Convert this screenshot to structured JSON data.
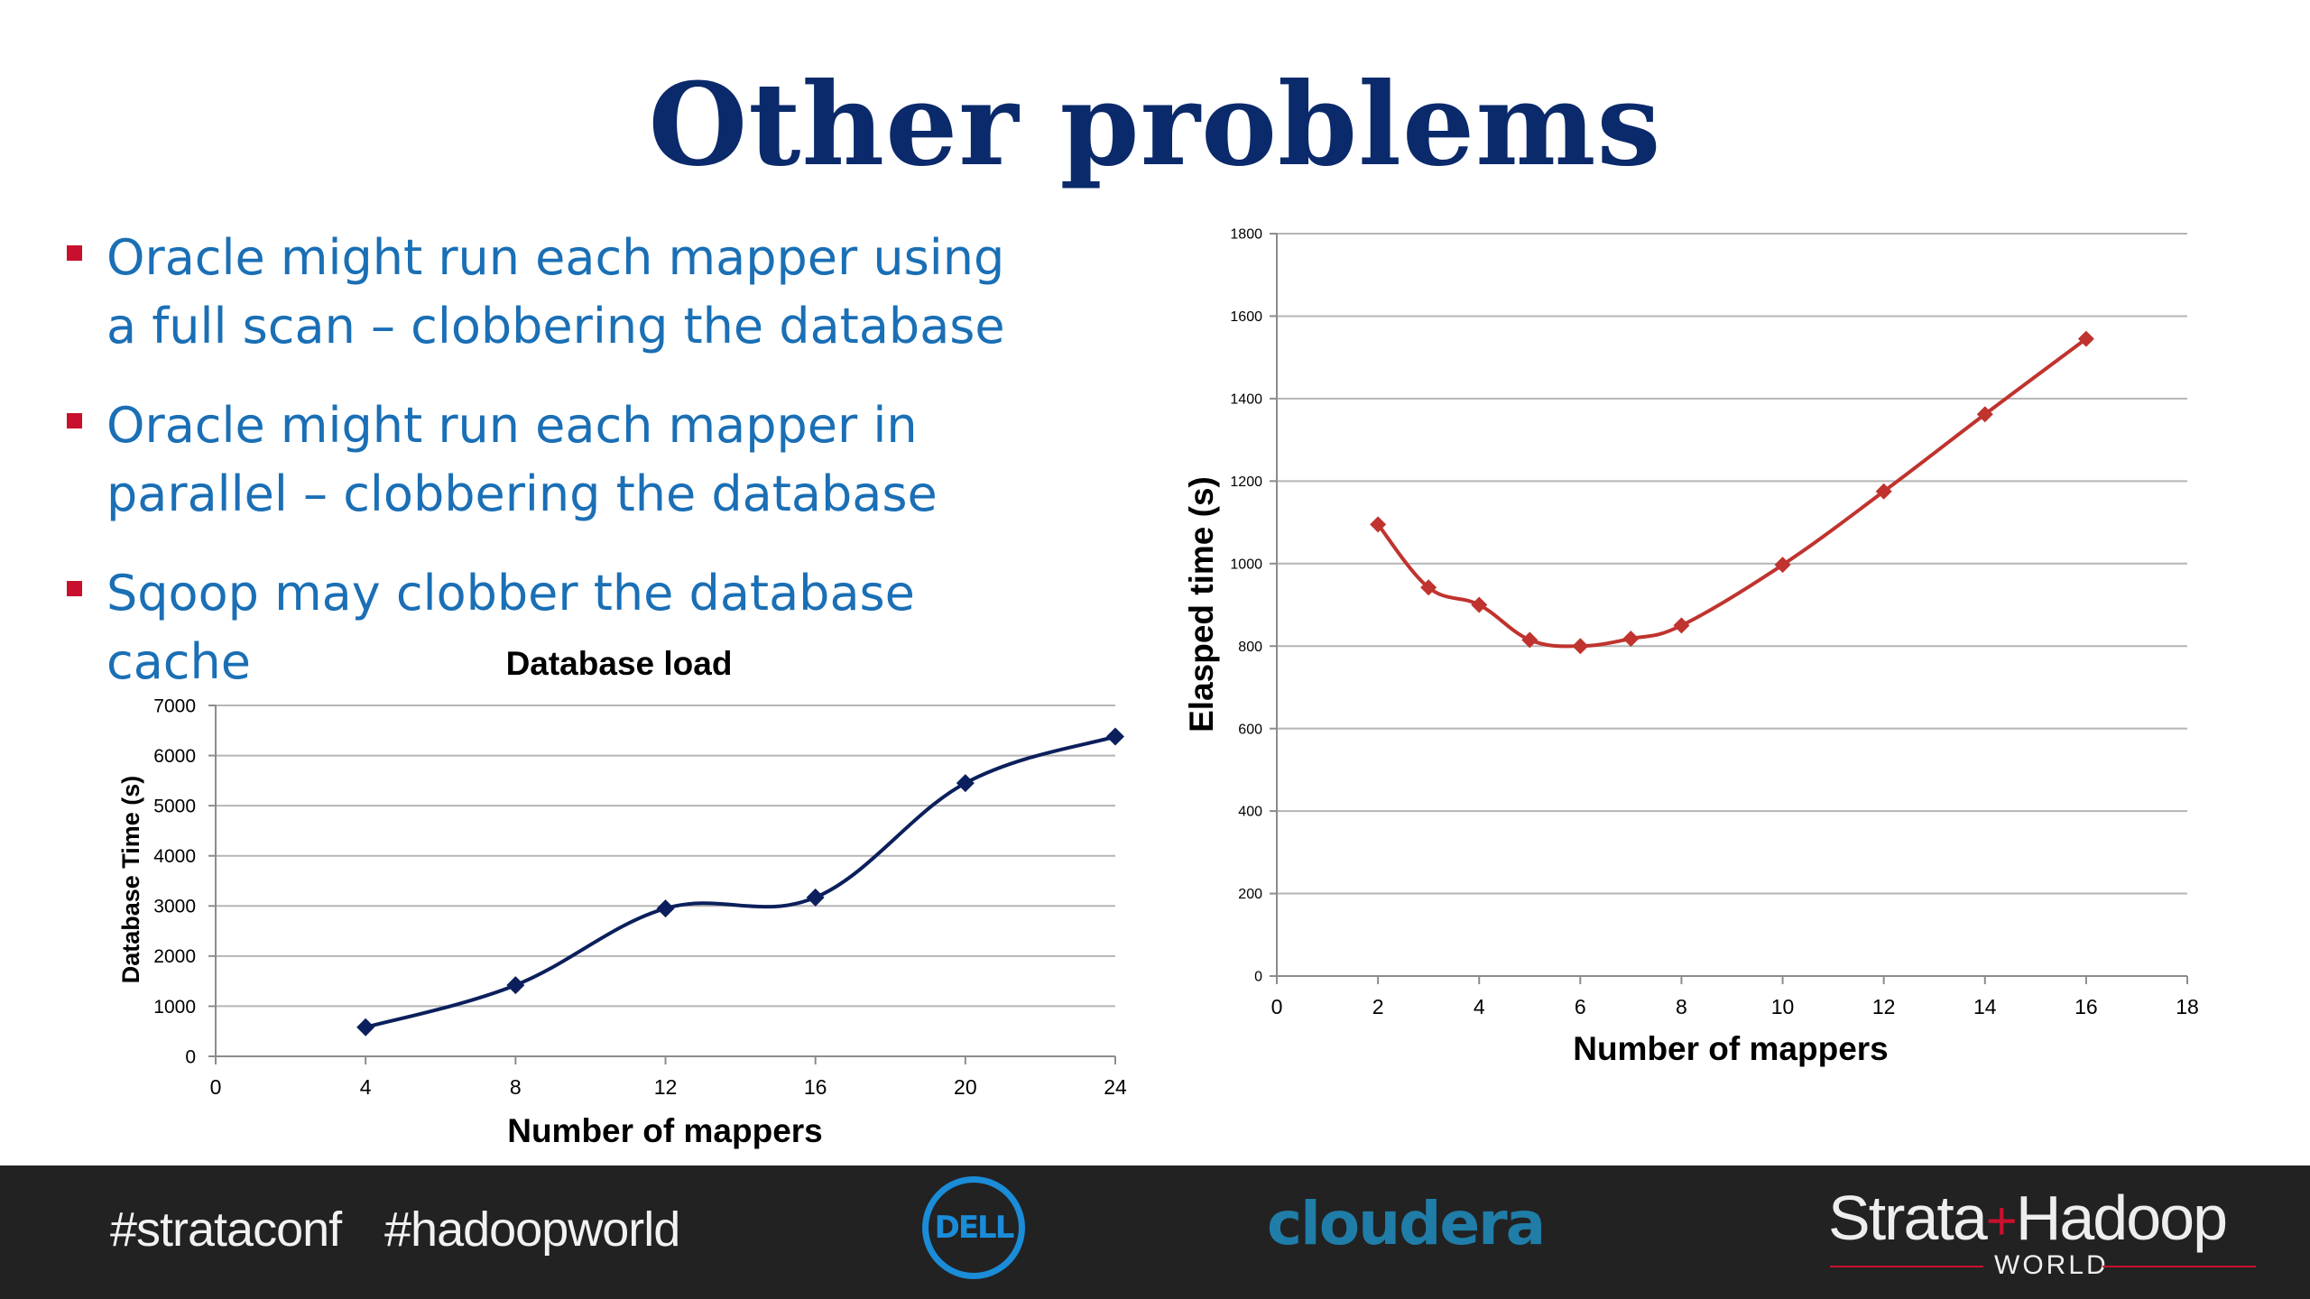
{
  "slide": {
    "title": "Other problems",
    "bullets": [
      "Oracle might run each mapper using a full scan – clobbering the database",
      "Oracle might run each mapper in parallel – clobbering the database",
      "Sqoop may clobber the database cache"
    ]
  },
  "colors": {
    "title": "#0b2a6b",
    "bullet_text": "#1a6fb5",
    "bullet_marker": "#c8102e",
    "left_series": "#0b1f5c",
    "right_series": "#c0332e",
    "footer_bg": "#222222"
  },
  "chart_data": [
    {
      "type": "line",
      "title": "Database load",
      "xlabel": "Number of mappers",
      "ylabel": "Database Time (s)",
      "xlim": [
        0,
        24
      ],
      "ylim": [
        0,
        7000
      ],
      "xticks": [
        0,
        4,
        8,
        12,
        16,
        20,
        24
      ],
      "yticks": [
        0,
        1000,
        2000,
        3000,
        4000,
        5000,
        6000,
        7000
      ],
      "grid": true,
      "marker": "diamond",
      "series": [
        {
          "x": [
            4,
            8,
            12,
            16,
            20,
            24
          ],
          "y": [
            580,
            1420,
            2950,
            3170,
            5450,
            6380
          ]
        }
      ]
    },
    {
      "type": "line",
      "title": "",
      "xlabel": "Number of mappers",
      "ylabel": "Elasped time (s)",
      "xlim": [
        0,
        18
      ],
      "ylim": [
        0,
        1800
      ],
      "xticks": [
        0,
        2,
        4,
        6,
        8,
        10,
        12,
        14,
        16,
        18
      ],
      "yticks": [
        0,
        200,
        400,
        600,
        800,
        1000,
        1200,
        1400,
        1600,
        1800
      ],
      "grid": true,
      "marker": "diamond",
      "series": [
        {
          "x": [
            2,
            3,
            4,
            5,
            6,
            7,
            8,
            10,
            12,
            14,
            16
          ],
          "y": [
            1095,
            942,
            900,
            815,
            800,
            818,
            850,
            997,
            1175,
            1362,
            1545
          ]
        }
      ]
    }
  ],
  "footer": {
    "hashtags": [
      "#strataconf",
      "#hadoopworld"
    ],
    "dell_logo": "DELL",
    "cloudera_logo": "cloudera",
    "strata_logo_left": "Strata",
    "strata_logo_plus": "+",
    "strata_logo_right": "Hadoop",
    "strata_logo_sub": "WORLD"
  }
}
